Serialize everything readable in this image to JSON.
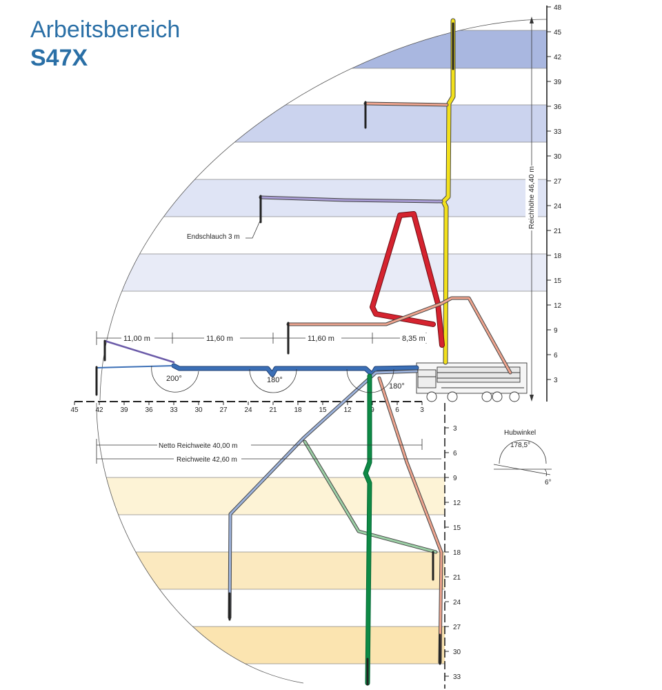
{
  "title": {
    "line1": "Arbeitsbereich",
    "line2": "S47X"
  },
  "right_axis": {
    "up_ticks": [
      "48",
      "45",
      "42",
      "39",
      "36",
      "33",
      "30",
      "27",
      "24",
      "21",
      "18",
      "15",
      "12",
      "9",
      "6",
      "3"
    ],
    "down_ticks": [
      "3",
      "6",
      "9",
      "12",
      "15",
      "18",
      "21",
      "24",
      "27",
      "30",
      "33"
    ]
  },
  "bottom_axis": {
    "ticks": [
      "45",
      "42",
      "39",
      "36",
      "33",
      "30",
      "27",
      "24",
      "21",
      "18",
      "15",
      "12",
      "9",
      "6",
      "3"
    ]
  },
  "dimensions": {
    "seg1": "11,00 m",
    "seg2": "11,60 m",
    "seg3": "11,60 m",
    "seg4": "8,35 m",
    "net_reach": "Netto Reichweite 40,00 m",
    "reach": "Reichweite 42,60 m",
    "height": "Reichhöhe 46,40 m",
    "end_hose": "Endschlauch 3 m"
  },
  "angles": {
    "a1": "200°",
    "a2": "180°",
    "a3": "180°"
  },
  "lift_angle": {
    "label": "Hubwinkel",
    "big": "178,5°",
    "small": "6°"
  },
  "colors": {
    "accent": "#2a6fa6",
    "band_blue_dark": "#a9b7e0",
    "band_blue_mid": "#cbd3ee",
    "band_blue_light": "#dfe4f5",
    "band_yellow_light": "#fdf3d6",
    "band_yellow_dark": "#fbe7b8",
    "boom_yellow": "#f2e01c",
    "boom_red": "#d5232f",
    "boom_salmon": "#eea48e",
    "boom_lilac": "#a89cd4",
    "boom_blue": "#3b6fb6",
    "boom_lightblue": "#9db3dc",
    "boom_green": "#0e8a45",
    "boom_lightgreen": "#9ccfa6"
  }
}
